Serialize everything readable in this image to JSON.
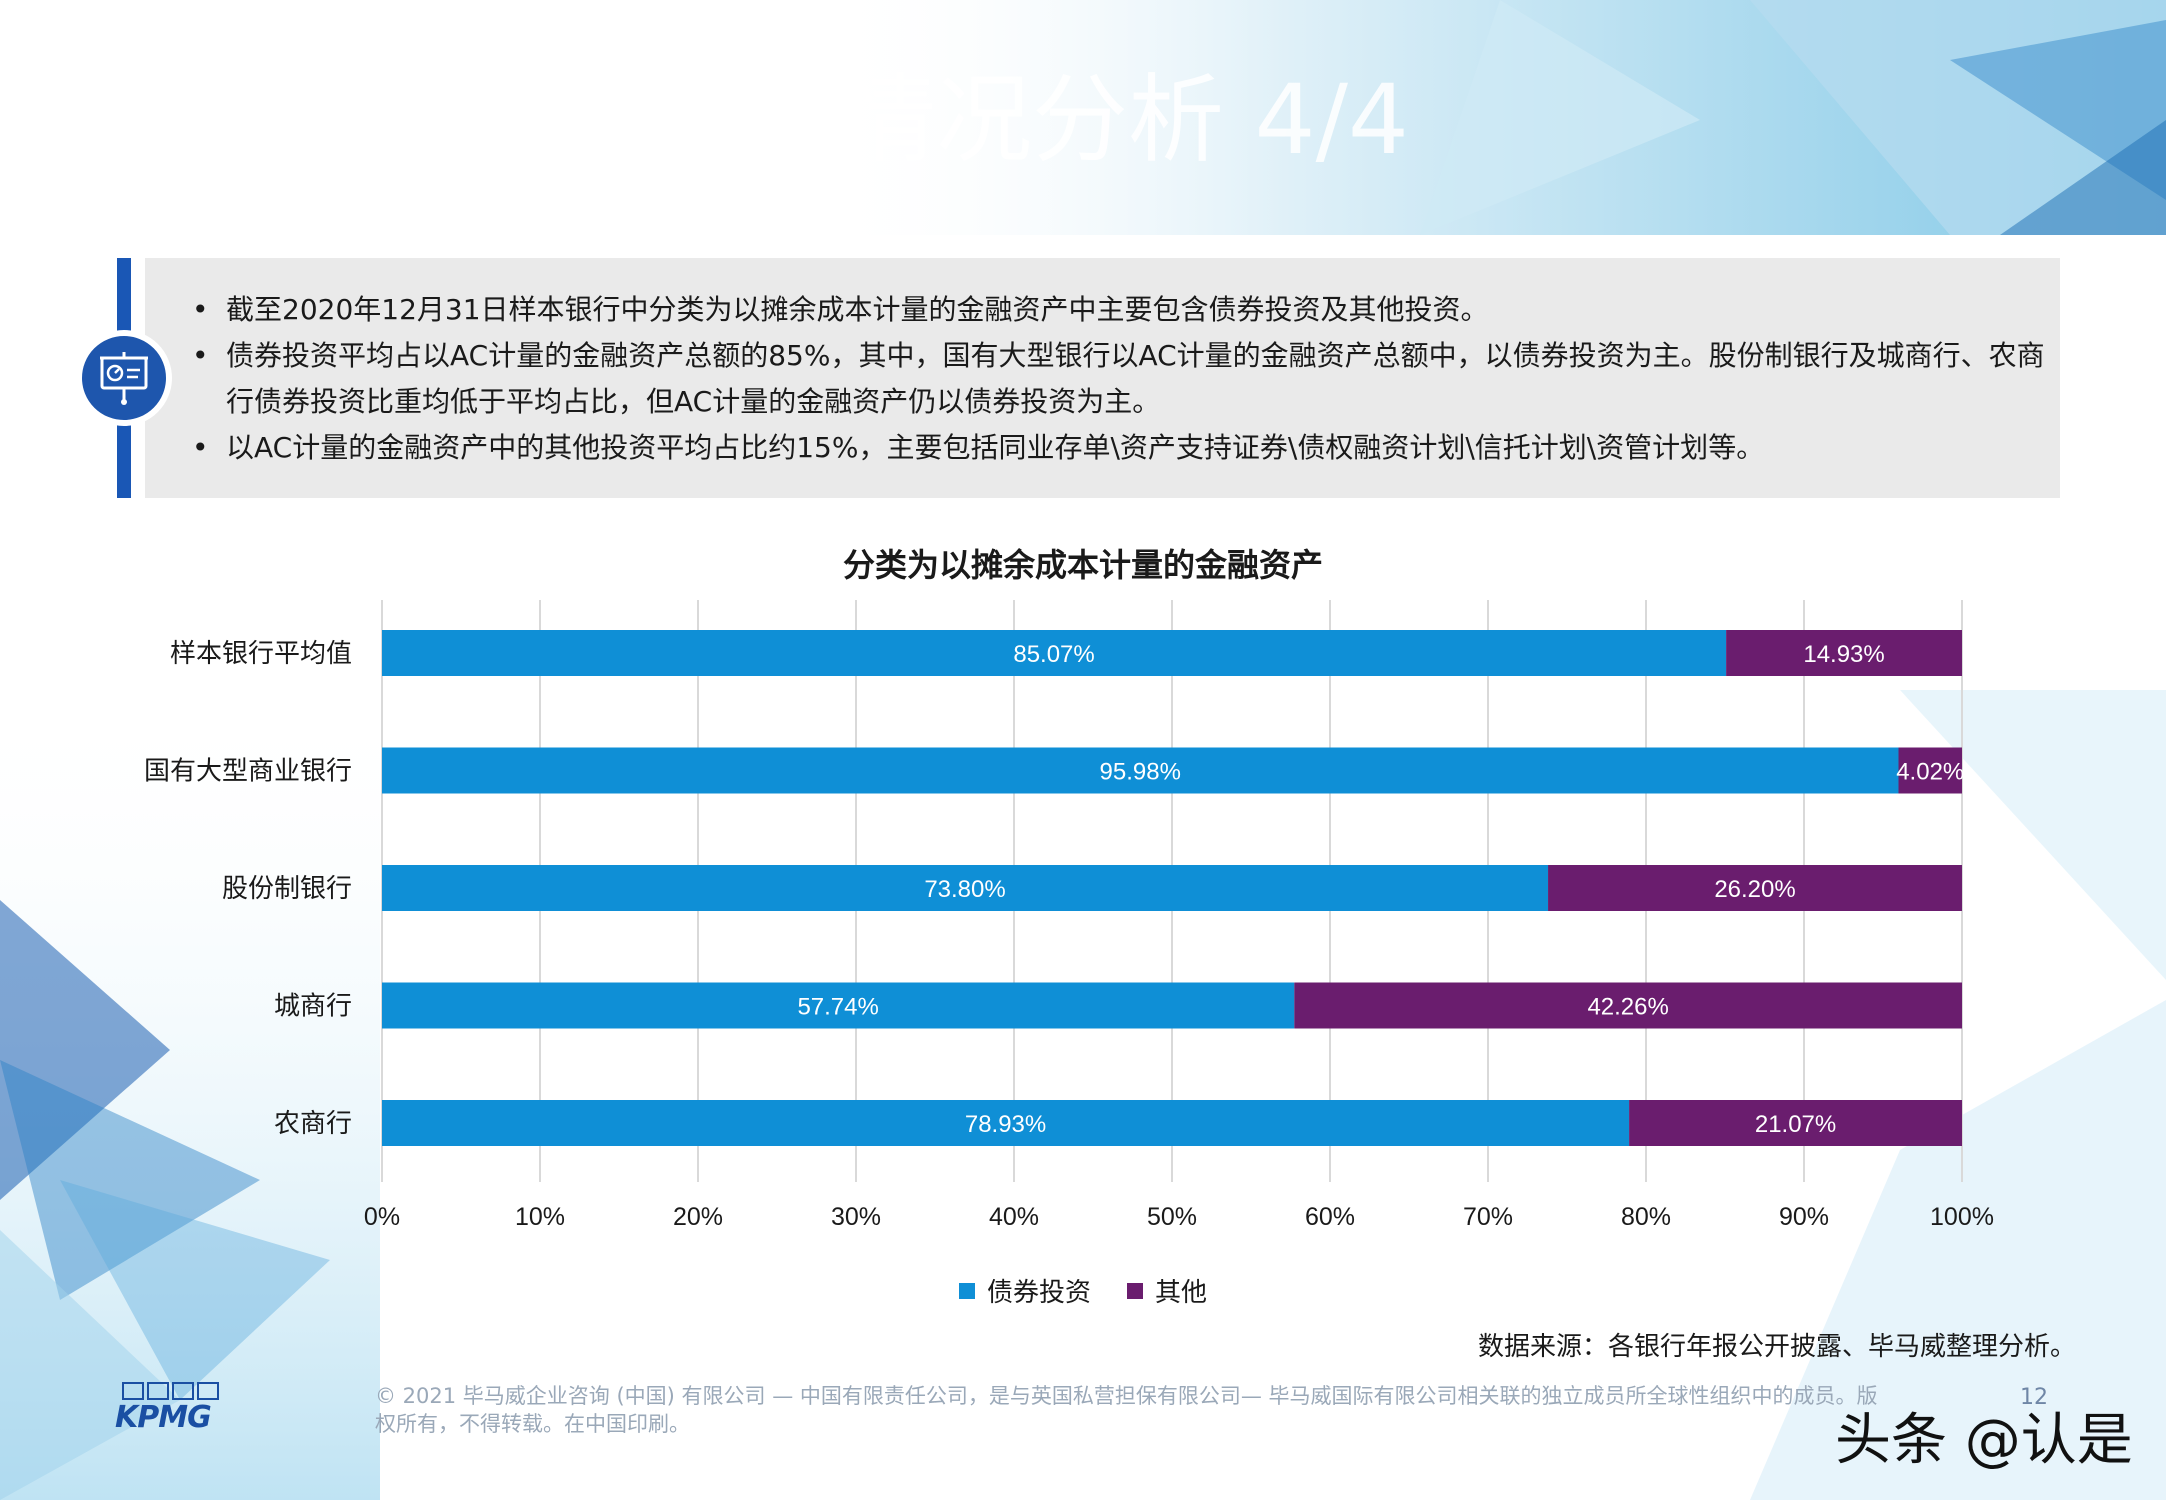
{
  "page": {
    "title": "情况分析 4/4",
    "bullets": [
      "截至2020年12月31日样本银行中分类为以摊余成本计量的金融资产中主要包含债券投资及其他投资。",
      "债券投资平均占以AC计量的金融资产总额的85%，其中，国有大型银行以AC计量的金融资产总额中，以债券投资为主。股份制银行及城商行、农商行债券投资比重均低于平均占比，但AC计量的金融资产仍以债券投资为主。",
      "以AC计量的金融资产中的其他投资平均占比约15%，主要包括同业存单\\资产支持证券\\债权融资计划\\信托计划\\资管计划等。"
    ],
    "icon": "presentation-board-icon",
    "source": "数据来源：各银行年报公开披露、毕马威整理分析。",
    "footer": {
      "logo": "KPMG",
      "copyright": "© 2021 毕马威企业咨询 (中国) 有限公司 — 中国有限责任公司，是与英国私营担保有限公司— 毕马威国际有限公司相关联的独立成员所全球性组织中的成员。版权所有，不得转载。在中国印刷。",
      "page_number": "12",
      "watermark": "头条 @认是"
    }
  },
  "chart_data": {
    "type": "bar",
    "orientation": "horizontal",
    "stacked": true,
    "title": "分类为以摊余成本计量的金融资产",
    "categories": [
      "样本银行平均值",
      "国有大型商业银行",
      "股份制银行",
      "城商行",
      "农商行"
    ],
    "series": [
      {
        "name": "债券投资",
        "color": "#0f8fd6",
        "values": [
          85.07,
          95.98,
          73.8,
          57.74,
          78.93
        ],
        "labels": [
          "85.07%",
          "95.98%",
          "73.80%",
          "57.74%",
          "78.93%"
        ]
      },
      {
        "name": "其他",
        "color": "#6a1d6e",
        "values": [
          14.93,
          4.02,
          26.2,
          42.26,
          21.07
        ],
        "labels": [
          "14.93%",
          "4.02%",
          "26.20%",
          "42.26%",
          "21.07%"
        ]
      }
    ],
    "xlim": [
      0,
      100
    ],
    "xticks": [
      "0%",
      "10%",
      "20%",
      "30%",
      "40%",
      "50%",
      "60%",
      "70%",
      "80%",
      "90%",
      "100%"
    ],
    "grid": true,
    "legend_position": "bottom"
  }
}
